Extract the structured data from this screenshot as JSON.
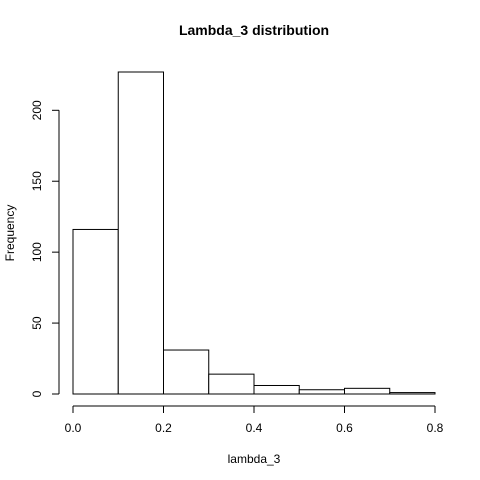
{
  "chart_data": {
    "type": "bar",
    "title": "Lambda_3 distribution",
    "xlabel": "lambda_3",
    "ylabel": "Frequency",
    "bins": [
      {
        "start": 0.0,
        "end": 0.1,
        "value": 116
      },
      {
        "start": 0.1,
        "end": 0.2,
        "value": 227
      },
      {
        "start": 0.2,
        "end": 0.3,
        "value": 31
      },
      {
        "start": 0.3,
        "end": 0.4,
        "value": 14
      },
      {
        "start": 0.4,
        "end": 0.5,
        "value": 6
      },
      {
        "start": 0.5,
        "end": 0.6,
        "value": 3
      },
      {
        "start": 0.6,
        "end": 0.7,
        "value": 4
      },
      {
        "start": 0.7,
        "end": 0.8,
        "value": 1
      }
    ],
    "xlim": [
      0.0,
      0.8
    ],
    "ylim": [
      0,
      227
    ],
    "xticks": [
      "0.0",
      "0.2",
      "0.4",
      "0.6",
      "0.8"
    ],
    "xtick_values": [
      0.0,
      0.2,
      0.4,
      0.6,
      0.8
    ],
    "yticks": [
      "0",
      "50",
      "100",
      "150",
      "200"
    ],
    "ytick_values": [
      0,
      50,
      100,
      150,
      200
    ],
    "grid": false,
    "bar_fill": "#ffffff",
    "bar_stroke": "#000000"
  }
}
